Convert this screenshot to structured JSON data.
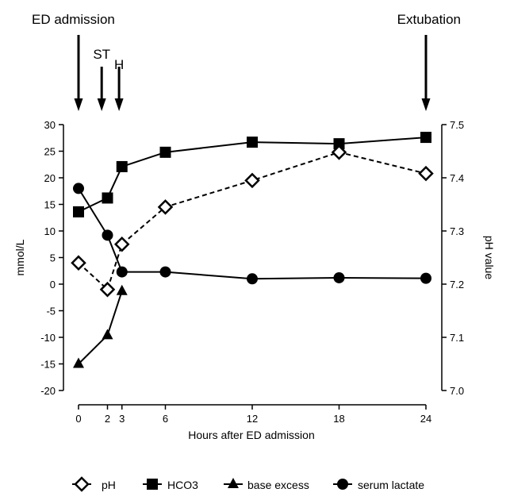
{
  "chart_data": {
    "type": "line",
    "xlabel": "Hours after ED admission",
    "ylabel_left": "mmol/L",
    "ylabel_right": "pH value",
    "x_ticks": [
      0,
      2,
      3,
      6,
      12,
      18,
      24
    ],
    "x_range": [
      0,
      24
    ],
    "ylim_left": [
      -20,
      30
    ],
    "y_ticks_left": [
      -20,
      -15,
      -10,
      -5,
      0,
      5,
      10,
      15,
      20,
      25,
      30
    ],
    "ylim_right": [
      7.0,
      7.5
    ],
    "y_ticks_right": [
      "7.0",
      "7.1",
      "7.2",
      "7.3",
      "7.4",
      "7.5"
    ],
    "grid": false,
    "legend_position": "bottom",
    "annotations": [
      {
        "text": "ED admission",
        "x": 0,
        "arrow": "long"
      },
      {
        "text": "ST",
        "x": 1.6,
        "arrow": "short"
      },
      {
        "text": "H",
        "x": 2.8,
        "arrow": "short"
      },
      {
        "text": "Extubation",
        "x": 24,
        "arrow": "long"
      }
    ],
    "series": [
      {
        "name": "pH",
        "axis": "right",
        "marker": "diamond-open",
        "line": "dashed",
        "x": [
          0,
          2,
          3,
          6,
          12,
          18,
          24
        ],
        "values": [
          7.24,
          7.19,
          7.275,
          7.345,
          7.395,
          7.448,
          7.408
        ]
      },
      {
        "name": "HCO3",
        "axis": "left",
        "marker": "square",
        "line": "solid",
        "x": [
          0,
          2,
          3,
          6,
          12,
          18,
          24
        ],
        "values": [
          13.6,
          16.2,
          22.1,
          24.8,
          26.7,
          26.4,
          27.6
        ]
      },
      {
        "name": "base excess",
        "axis": "left",
        "marker": "triangle",
        "line": "solid",
        "x": [
          0,
          2,
          3
        ],
        "values": [
          -15.0,
          -9.6,
          -1.3
        ]
      },
      {
        "name": "serum lactate",
        "axis": "left",
        "marker": "circle",
        "line": "solid",
        "x": [
          0,
          2,
          3,
          6,
          12,
          18,
          24
        ],
        "values": [
          18.0,
          9.2,
          2.3,
          2.3,
          1.0,
          1.2,
          1.1
        ]
      }
    ]
  }
}
